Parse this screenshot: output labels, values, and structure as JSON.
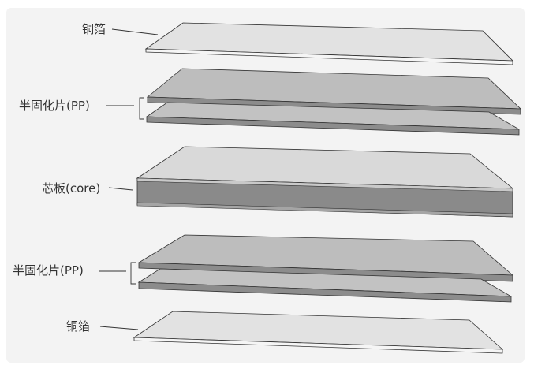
{
  "labels": {
    "top_copper": "铜箔",
    "top_prepreg": "半固化片(PP)",
    "core": "芯板(core)",
    "bottom_prepreg": "半固化片(PP)",
    "bottom_copper": "铜箔"
  },
  "colors": {
    "background": "#f3f3f3",
    "copper_top_face": "#e2e2e2",
    "prepreg_top_face": "#bdbdbd",
    "prepreg_side": "#8c8c8c",
    "core_top_face": "#d9d9d9",
    "core_side": "#8a8a8a",
    "outline": "#333333"
  }
}
